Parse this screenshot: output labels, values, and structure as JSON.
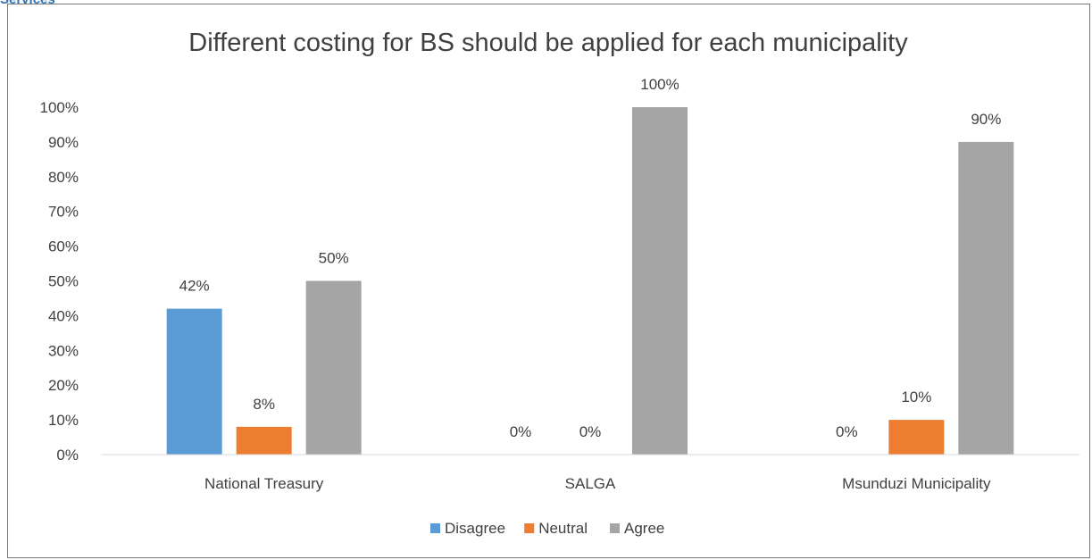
{
  "header_fragment": "Services",
  "chart_data": {
    "type": "bar",
    "title": "Different costing for BS should be applied for each municipality",
    "xlabel": "",
    "ylabel": "",
    "categories": [
      "National Treasury",
      "SALGA",
      "Msunduzi Municipality"
    ],
    "series": [
      {
        "name": "Disagree",
        "color": "#5b9bd5",
        "values": [
          42,
          0,
          0
        ],
        "labels": [
          "42%",
          "0%",
          "0%"
        ]
      },
      {
        "name": "Neutral",
        "color": "#ed7d31",
        "values": [
          8,
          0,
          10
        ],
        "labels": [
          "8%",
          "0%",
          "10%"
        ]
      },
      {
        "name": "Agree",
        "color": "#a5a5a5",
        "values": [
          50,
          100,
          90
        ],
        "labels": [
          "50%",
          "100%",
          "90%"
        ]
      }
    ],
    "ylim": [
      0,
      100
    ],
    "yticks": [
      "0%",
      "10%",
      "20%",
      "30%",
      "40%",
      "50%",
      "60%",
      "70%",
      "80%",
      "90%",
      "100%"
    ],
    "grid": false,
    "legend_position": "bottom"
  }
}
